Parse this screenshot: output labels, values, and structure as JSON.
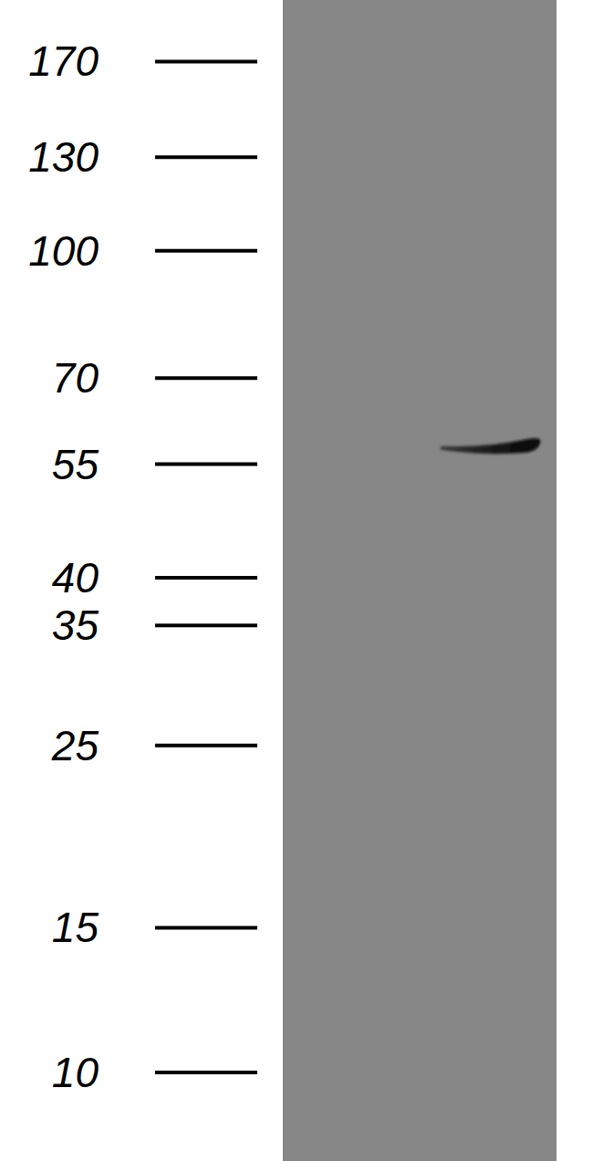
{
  "chart_data": {
    "type": "western_blot",
    "log": "y",
    "ylim": [
      7.8,
      202
    ],
    "yticks": [
      170,
      130,
      100,
      70,
      55,
      40,
      35,
      25,
      15,
      10
    ],
    "bands": [
      58
    ],
    "color": "#878787"
  }
}
